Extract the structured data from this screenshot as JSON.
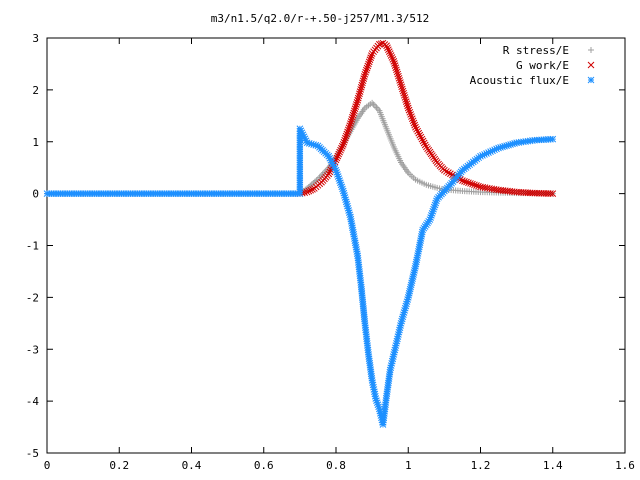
{
  "chart_data": {
    "type": "scatter",
    "title": "m3/n1.5/q2.0/r-+.50-j257/M1.3/512",
    "xlim": [
      0,
      1.6
    ],
    "ylim": [
      -5,
      3
    ],
    "xticks": [
      "0",
      "0.2",
      "0.4",
      "0.6",
      "0.8",
      "1",
      "1.2",
      "1.4",
      "1.6"
    ],
    "yticks": [
      "3",
      "2",
      "1",
      "0",
      "-1",
      "-2",
      "-3",
      "-4",
      "-5"
    ],
    "grid": false,
    "legend_position": "top-right",
    "series": [
      {
        "name": "R stress/E",
        "marker": "+",
        "color": "#a0a0a0",
        "x": [
          0.0,
          0.1,
          0.2,
          0.3,
          0.4,
          0.5,
          0.6,
          0.7,
          0.72,
          0.75,
          0.78,
          0.8,
          0.82,
          0.84,
          0.86,
          0.88,
          0.9,
          0.92,
          0.94,
          0.96,
          0.98,
          1.0,
          1.02,
          1.05,
          1.08,
          1.1,
          1.15,
          1.2,
          1.25,
          1.3,
          1.35,
          1.4
        ],
        "y": [
          0,
          0,
          0,
          0,
          0,
          0,
          0,
          0.0,
          0.1,
          0.28,
          0.5,
          0.7,
          0.95,
          1.2,
          1.45,
          1.65,
          1.75,
          1.6,
          1.25,
          0.9,
          0.6,
          0.4,
          0.27,
          0.17,
          0.11,
          0.08,
          0.05,
          0.03,
          0.02,
          0.01,
          0.01,
          0.0
        ]
      },
      {
        "name": "G work/E",
        "marker": "x",
        "color": "#d00000",
        "x": [
          0.7,
          0.72,
          0.74,
          0.76,
          0.78,
          0.8,
          0.82,
          0.84,
          0.86,
          0.88,
          0.9,
          0.92,
          0.93,
          0.94,
          0.96,
          0.98,
          1.0,
          1.02,
          1.05,
          1.08,
          1.1,
          1.15,
          1.2,
          1.25,
          1.3,
          1.35,
          1.4
        ],
        "y": [
          0.0,
          0.03,
          0.1,
          0.22,
          0.38,
          0.65,
          0.95,
          1.35,
          1.8,
          2.3,
          2.7,
          2.88,
          2.9,
          2.85,
          2.55,
          2.1,
          1.65,
          1.28,
          0.9,
          0.6,
          0.45,
          0.25,
          0.13,
          0.07,
          0.03,
          0.01,
          0.0
        ]
      },
      {
        "name": "Acoustic flux/E",
        "marker": "*",
        "color": "#1e90ff",
        "x": [
          0.0,
          0.1,
          0.2,
          0.3,
          0.4,
          0.5,
          0.6,
          0.7,
          0.7,
          0.7,
          0.72,
          0.75,
          0.78,
          0.8,
          0.82,
          0.84,
          0.86,
          0.87,
          0.88,
          0.89,
          0.9,
          0.91,
          0.92,
          0.93,
          0.94,
          0.95,
          0.96,
          0.97,
          0.98,
          1.0,
          1.02,
          1.04,
          1.06,
          1.08,
          1.1,
          1.12,
          1.15,
          1.2,
          1.25,
          1.3,
          1.35,
          1.4
        ],
        "y": [
          0,
          0,
          0,
          0,
          0,
          0,
          0,
          0,
          1.2,
          1.25,
          0.98,
          0.92,
          0.72,
          0.45,
          0.05,
          -0.45,
          -1.2,
          -1.8,
          -2.5,
          -3.1,
          -3.6,
          -3.95,
          -4.15,
          -4.45,
          -3.9,
          -3.4,
          -3.1,
          -2.8,
          -2.5,
          -2.0,
          -1.4,
          -0.7,
          -0.5,
          -0.1,
          0.05,
          0.2,
          0.45,
          0.72,
          0.88,
          0.98,
          1.03,
          1.05
        ]
      }
    ]
  }
}
